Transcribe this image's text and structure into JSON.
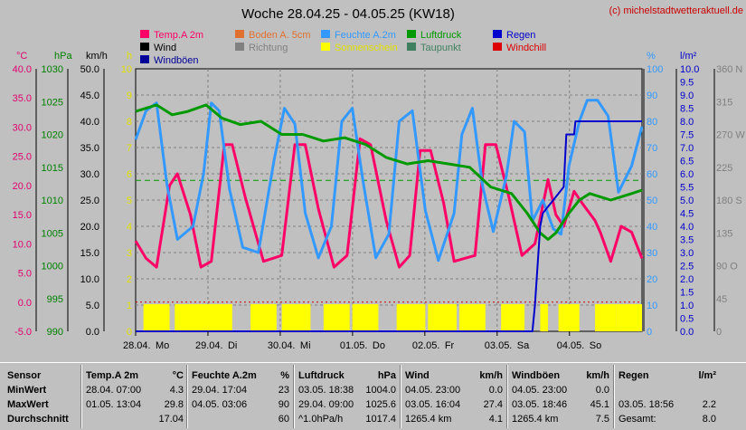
{
  "chart_data": {
    "type": "line",
    "title": "Woche 28.04.25 - 04.05.25 (KW18)",
    "copyright": "(c) michelstadtwetteraktuell.de",
    "x_tick_labels": [
      "28.04.",
      "Mo",
      "29.04.",
      "Di",
      "30.04.",
      "Mi",
      "01.05.",
      "Do",
      "02.05.",
      "Fr",
      "03.05.",
      "Sa",
      "04.05.",
      "So"
    ],
    "axes": {
      "temp": {
        "unit": "°C",
        "range": [
          -5,
          40
        ],
        "ticks": [
          "40.0",
          "35.0",
          "30.0",
          "25.0",
          "20.0",
          "15.0",
          "10.0",
          "5.0",
          "0.0",
          "-5.0"
        ],
        "color": "#e0006f"
      },
      "pressure": {
        "unit": "hPa",
        "range": [
          990,
          1030
        ],
        "ticks": [
          "1030",
          "1025",
          "1020",
          "1015",
          "1010",
          "1005",
          "1000",
          "995",
          "990"
        ],
        "color": "#008000"
      },
      "wind": {
        "unit": "km/h",
        "range": [
          0,
          50
        ],
        "ticks": [
          "50.0",
          "45.0",
          "40.0",
          "35.0",
          "30.0",
          "25.0",
          "20.0",
          "15.0",
          "10.0",
          "5.0",
          "0.0"
        ],
        "color": "#000000"
      },
      "sun": {
        "unit": "h",
        "range": [
          0,
          10
        ],
        "ticks": [
          "10",
          "9",
          "8",
          "7",
          "6",
          "5",
          "4",
          "3",
          "2",
          "1",
          "0"
        ],
        "color": "#e0e000"
      },
      "humidity": {
        "unit": "%",
        "range": [
          0,
          100
        ],
        "ticks": [
          "100",
          "90",
          "80",
          "70",
          "60",
          "50",
          "40",
          "30",
          "20",
          "10",
          "0"
        ],
        "color": "#3399ff"
      },
      "rain": {
        "unit": "l/m²",
        "range": [
          0,
          10
        ],
        "ticks": [
          "10.0",
          "9.5",
          "9.0",
          "8.5",
          "8.0",
          "7.5",
          "7.0",
          "6.5",
          "6.0",
          "5.5",
          "5.0",
          "4.5",
          "4.0",
          "3.5",
          "3.0",
          "2.5",
          "2.0",
          "1.5",
          "1.0",
          "0.5",
          "0.0"
        ],
        "color": "#0000cc"
      },
      "direction": {
        "unit": "°",
        "range": [
          0,
          360
        ],
        "ticks": [
          "360 N",
          "315",
          "270 W",
          "225",
          "180 S",
          "135",
          "90 O",
          "45",
          "0"
        ],
        "color": "#808080"
      }
    },
    "legend": [
      {
        "name": "Temp.A 2m",
        "color": "#ff0066"
      },
      {
        "name": "Boden A. 5cm",
        "color": "#e07030"
      },
      {
        "name": "Feuchte A.2m",
        "color": "#3399ff"
      },
      {
        "name": "Luftdruck",
        "color": "#009900"
      },
      {
        "name": "Regen",
        "color": "#0000cc"
      },
      {
        "name": "Wind",
        "color": "#000000"
      },
      {
        "name": "Richtung",
        "color": "#808080"
      },
      {
        "name": "Sonnenschein",
        "color": "#ffff00"
      },
      {
        "name": "Taupunkt",
        "color": "#408060"
      },
      {
        "name": "Windchill",
        "color": "#dd0000"
      },
      {
        "name": "Windböen",
        "color": "#000099"
      }
    ],
    "series": [
      {
        "name": "Temp.A 2m",
        "unit": "°C",
        "values": [
          [
            0,
            10.5
          ],
          [
            4,
            7.5
          ],
          [
            8,
            6
          ],
          [
            13,
            20
          ],
          [
            16,
            22
          ],
          [
            21,
            15
          ],
          [
            25,
            6
          ],
          [
            29,
            7
          ],
          [
            34,
            27
          ],
          [
            37,
            27
          ],
          [
            42,
            18
          ],
          [
            49,
            7
          ],
          [
            56,
            8
          ],
          [
            61,
            27
          ],
          [
            65,
            27
          ],
          [
            70,
            16
          ],
          [
            76,
            6
          ],
          [
            81,
            8
          ],
          [
            86,
            28
          ],
          [
            90,
            27
          ],
          [
            96,
            14
          ],
          [
            101,
            6
          ],
          [
            105,
            8
          ],
          [
            109,
            26
          ],
          [
            113,
            26
          ],
          [
            118,
            17
          ],
          [
            122,
            7
          ],
          [
            130,
            8
          ],
          [
            134,
            27
          ],
          [
            138,
            27
          ],
          [
            143,
            18
          ],
          [
            148,
            8
          ],
          [
            153,
            10
          ],
          [
            158,
            21
          ],
          [
            161,
            15
          ],
          [
            164,
            13
          ],
          [
            168,
            19
          ],
          [
            171,
            17
          ],
          [
            176,
            14
          ],
          [
            178,
            12
          ],
          [
            182,
            7
          ],
          [
            186,
            13
          ],
          [
            190,
            12
          ],
          [
            194,
            7.5
          ]
        ]
      },
      {
        "name": "Feuchte A.2m",
        "unit": "%",
        "values": [
          [
            0,
            73
          ],
          [
            4,
            84
          ],
          [
            8,
            87
          ],
          [
            12,
            56
          ],
          [
            16,
            35
          ],
          [
            22,
            40
          ],
          [
            26,
            60
          ],
          [
            29,
            87
          ],
          [
            32,
            84
          ],
          [
            36,
            54
          ],
          [
            41,
            32
          ],
          [
            47,
            30
          ],
          [
            53,
            65
          ],
          [
            57,
            85
          ],
          [
            61,
            79
          ],
          [
            65,
            45
          ],
          [
            70,
            28
          ],
          [
            75,
            40
          ],
          [
            79,
            80
          ],
          [
            83,
            85
          ],
          [
            87,
            58
          ],
          [
            92,
            28
          ],
          [
            97,
            37
          ],
          [
            101,
            80
          ],
          [
            106,
            84
          ],
          [
            111,
            46
          ],
          [
            116,
            27
          ],
          [
            122,
            45
          ],
          [
            125,
            75
          ],
          [
            129,
            85
          ],
          [
            133,
            55
          ],
          [
            137,
            38
          ],
          [
            142,
            59
          ],
          [
            145,
            80
          ],
          [
            149,
            76
          ],
          [
            152,
            42
          ],
          [
            156,
            50
          ],
          [
            160,
            39
          ],
          [
            163,
            37
          ],
          [
            166,
            63
          ],
          [
            170,
            80
          ],
          [
            173,
            88
          ],
          [
            177,
            88
          ],
          [
            181,
            82
          ],
          [
            185,
            53
          ],
          [
            190,
            63
          ],
          [
            194,
            78
          ]
        ]
      },
      {
        "name": "Luftdruck",
        "unit": "hPa",
        "values": [
          [
            0,
            1023.5
          ],
          [
            8,
            1024.5
          ],
          [
            14,
            1023
          ],
          [
            20,
            1023.5
          ],
          [
            27,
            1024.5
          ],
          [
            33,
            1022.5
          ],
          [
            40,
            1021.5
          ],
          [
            48,
            1022
          ],
          [
            56,
            1020
          ],
          [
            64,
            1020
          ],
          [
            72,
            1019
          ],
          [
            80,
            1019.5
          ],
          [
            88,
            1018.5
          ],
          [
            96,
            1016.5
          ],
          [
            104,
            1015.5
          ],
          [
            112,
            1016
          ],
          [
            120,
            1015.5
          ],
          [
            128,
            1015
          ],
          [
            136,
            1012
          ],
          [
            144,
            1011
          ],
          [
            150,
            1008
          ],
          [
            155,
            1005
          ],
          [
            158,
            1004
          ],
          [
            161,
            1005
          ],
          [
            166,
            1008
          ],
          [
            170,
            1010
          ],
          [
            174,
            1011
          ],
          [
            178,
            1010.5
          ],
          [
            182,
            1010
          ],
          [
            186,
            1010.5
          ],
          [
            190,
            1011
          ],
          [
            194,
            1011.5
          ]
        ]
      },
      {
        "name": "Regen",
        "unit": "l/m²",
        "values": [
          [
            0,
            0
          ],
          [
            152,
            0
          ],
          [
            153,
            1
          ],
          [
            155,
            4
          ],
          [
            156,
            4.5
          ],
          [
            160,
            5
          ],
          [
            164,
            5.5
          ],
          [
            165,
            7.5
          ],
          [
            168,
            7.5
          ],
          [
            168.5,
            8
          ],
          [
            175,
            8
          ],
          [
            180,
            8
          ],
          [
            194,
            8
          ]
        ]
      }
    ],
    "reference_line_pressure": 1013,
    "reference_line_temp_zero": 0
  },
  "stats": {
    "headers": [
      {
        "name": "Sensor",
        "unit": ""
      },
      {
        "name": "Temp.A 2m",
        "unit": "°C"
      },
      {
        "name": "Feuchte A.2m",
        "unit": "%"
      },
      {
        "name": "Luftdruck",
        "unit": "hPa"
      },
      {
        "name": "Wind",
        "unit": "km/h"
      },
      {
        "name": "Windböen",
        "unit": "km/h"
      },
      {
        "name": "Regen",
        "unit": "l/m²"
      }
    ],
    "rows": [
      {
        "label": "MinWert",
        "cells": [
          [
            "28.04.  07:00",
            "4.3"
          ],
          [
            "29.04.  17:04",
            "23"
          ],
          [
            "03.05.  18:38",
            "1004.0"
          ],
          [
            "04.05.  23:00",
            "0.0"
          ],
          [
            "04.05.  23:00",
            "0.0"
          ],
          [
            "",
            ""
          ]
        ]
      },
      {
        "label": "MaxWert",
        "cells": [
          [
            "01.05.  13:04",
            "29.8"
          ],
          [
            "04.05.  03:06",
            "90"
          ],
          [
            "29.04.  09:00",
            "1025.6"
          ],
          [
            "03.05.  16:04",
            "27.4"
          ],
          [
            "03.05.  18:46",
            "45.1"
          ],
          [
            "03.05.  18:56",
            "2.2"
          ]
        ]
      },
      {
        "label": "Durchschnitt",
        "cells": [
          [
            "",
            "17.04"
          ],
          [
            "",
            "60"
          ],
          [
            "^1.0hPa/h",
            "1017.4"
          ],
          [
            "1265.4 km",
            "4.1"
          ],
          [
            "1265.4 km",
            "7.5"
          ],
          [
            "Gesamt:",
            "8.0"
          ]
        ]
      }
    ]
  }
}
